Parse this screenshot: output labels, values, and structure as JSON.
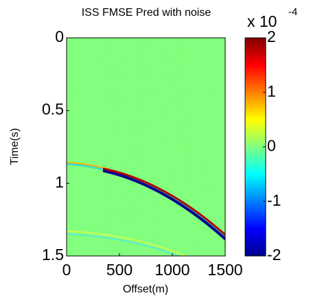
{
  "chart_data": {
    "type": "image",
    "title": "ISS FMSE Pred with noise",
    "x_label": "Offset(m)",
    "y_label": "Time(s)",
    "xlim": [
      0,
      1500
    ],
    "xticks": [
      0,
      500,
      1000,
      1500
    ],
    "ylim": [
      0,
      1.5
    ],
    "yticks": [
      0,
      0.5,
      1,
      1.5
    ],
    "y_direction": "reverse",
    "colormap": "jet",
    "clim": [
      -2,
      2
    ],
    "cticks": [
      -2,
      -1,
      0,
      1,
      2
    ],
    "colorbar_scale": {
      "base": "x 10",
      "exponent": "-4"
    }
  }
}
